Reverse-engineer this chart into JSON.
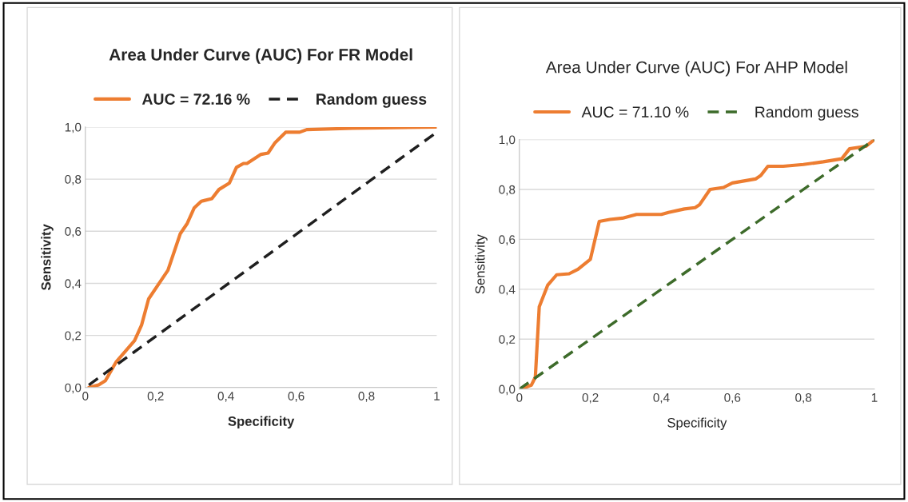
{
  "chart_data": [
    {
      "type": "line",
      "title": "Area Under Curve (AUC) For FR Model",
      "xlabel": "Specificity",
      "ylabel": "Sensitivity",
      "xlim": [
        0,
        1
      ],
      "ylim": [
        0,
        1
      ],
      "xticks": [
        0,
        {
          "value": 0.2,
          "label": "0,2"
        },
        {
          "value": 0.4,
          "label": "0,4"
        },
        {
          "value": 0.6,
          "label": "0,6"
        },
        {
          "value": 0.8,
          "label": "0,8"
        },
        1
      ],
      "yticks": [
        {
          "value": 0,
          "label": "0,0"
        },
        {
          "value": 0.2,
          "label": "0,2"
        },
        {
          "value": 0.4,
          "label": "0,4"
        },
        {
          "value": 0.6,
          "label": "0,6"
        },
        {
          "value": 0.8,
          "label": "0,8"
        },
        {
          "value": 1,
          "label": "1,0"
        }
      ],
      "grid": "y",
      "legend": "top",
      "series": [
        {
          "name": "AUC = 72.16 %",
          "color": "#ed7d31",
          "line_style": "solid",
          "x": [
            0.01,
            0.038,
            0.057,
            0.087,
            0.14,
            0.16,
            0.18,
            0.22,
            0.235,
            0.27,
            0.29,
            0.31,
            0.33,
            0.36,
            0.38,
            0.41,
            0.43,
            0.45,
            0.46,
            0.5,
            0.52,
            0.54,
            0.57,
            0.61,
            0.63,
            0.76,
            1.0
          ],
          "values": [
            0.0,
            0.01,
            0.026,
            0.097,
            0.18,
            0.24,
            0.34,
            0.42,
            0.45,
            0.59,
            0.63,
            0.69,
            0.715,
            0.725,
            0.76,
            0.785,
            0.845,
            0.86,
            0.86,
            0.895,
            0.9,
            0.94,
            0.98,
            0.98,
            0.99,
            0.995,
            1.0
          ]
        },
        {
          "name": "Random guess",
          "color": "#1f1f1f",
          "line_style": "dashed",
          "x": [
            0.01,
            1.0
          ],
          "values": [
            0.01,
            0.98
          ]
        }
      ]
    },
    {
      "type": "line",
      "title": "Area Under Curve (AUC) For AHP Model",
      "xlabel": "Specificity",
      "ylabel": "Sensitivity",
      "xlim": [
        0,
        1
      ],
      "ylim": [
        0,
        1
      ],
      "xticks": [
        0,
        {
          "value": 0.2,
          "label": "0,2"
        },
        {
          "value": 0.4,
          "label": "0,4"
        },
        {
          "value": 0.6,
          "label": "0,6"
        },
        {
          "value": 0.8,
          "label": "0,8"
        },
        1
      ],
      "yticks": [
        {
          "value": 0,
          "label": "0,0"
        },
        {
          "value": 0.2,
          "label": "0,2"
        },
        {
          "value": 0.4,
          "label": "0,4"
        },
        {
          "value": 0.6,
          "label": "0,6"
        },
        {
          "value": 0.8,
          "label": "0,8"
        },
        {
          "value": 1,
          "label": "1,0"
        }
      ],
      "grid": "y",
      "legend": "top",
      "series": [
        {
          "name": "AUC = 71.10 %",
          "color": "#ed7d31",
          "line_style": "solid",
          "x": [
            0.004,
            0.034,
            0.045,
            0.056,
            0.08,
            0.105,
            0.14,
            0.165,
            0.2,
            0.225,
            0.255,
            0.29,
            0.33,
            0.4,
            0.42,
            0.465,
            0.495,
            0.507,
            0.537,
            0.575,
            0.6,
            0.665,
            0.68,
            0.7,
            0.743,
            0.8,
            0.856,
            0.908,
            0.93,
            0.976,
            1.0
          ],
          "values": [
            0.0,
            0.016,
            0.048,
            0.33,
            0.417,
            0.458,
            0.462,
            0.48,
            0.52,
            0.672,
            0.68,
            0.685,
            0.7,
            0.7,
            0.708,
            0.722,
            0.727,
            0.738,
            0.8,
            0.808,
            0.826,
            0.842,
            0.856,
            0.893,
            0.893,
            0.9,
            0.911,
            0.923,
            0.963,
            0.973,
            1.0
          ]
        },
        {
          "name": "Random guess",
          "color": "#3d6b2a",
          "line_style": "dashed",
          "x": [
            0.0,
            1.0
          ],
          "values": [
            0.0,
            1.0
          ]
        }
      ]
    }
  ]
}
